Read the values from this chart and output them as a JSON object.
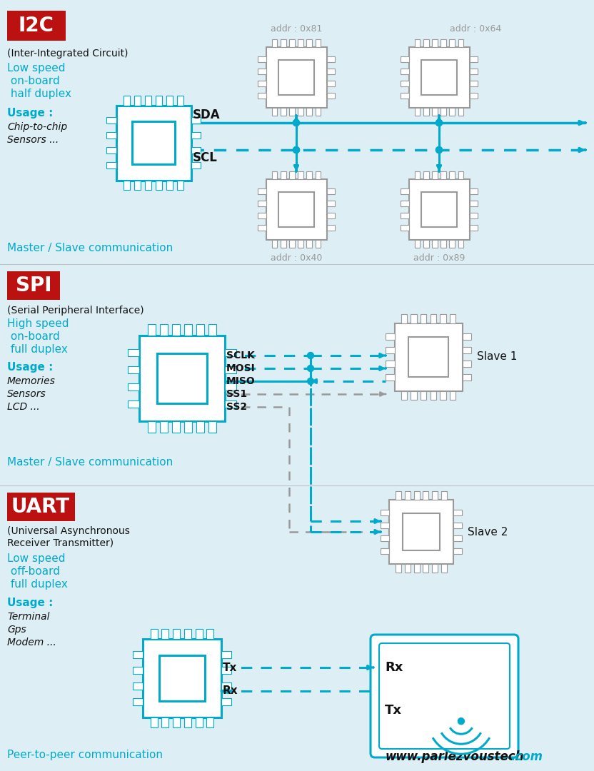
{
  "bg_color": "#deeef5",
  "cyan": "#00aacc",
  "red": "#bb1111",
  "gray": "#999999",
  "dark_gray": "#666666",
  "black": "#111111",
  "white": "#ffffff",
  "title_i2c": "I2C",
  "title_spi": "SPI",
  "title_uart": "UART",
  "i2c_subtitle": "(Inter-Integrated Circuit)",
  "i2c_desc": [
    "Low speed",
    " on-board",
    " half duplex"
  ],
  "i2c_usage_label": "Usage :",
  "i2c_usage": [
    "Chip-to-chip",
    "Sensors ..."
  ],
  "i2c_comm": "Master / Slave communication",
  "spi_subtitle": "(Serial Peripheral Interface)",
  "spi_desc": [
    "High speed",
    " on-board",
    " full duplex"
  ],
  "spi_usage_label": "Usage :",
  "spi_usage": [
    "Memories",
    "Sensors",
    "LCD ..."
  ],
  "spi_comm": "Master / Slave communication",
  "uart_subtitle1": "(Universal Asynchronous",
  "uart_subtitle2": "Receiver Transmitter)",
  "uart_desc": [
    "Low speed",
    " off-board",
    " full duplex"
  ],
  "uart_usage_label": "Usage :",
  "uart_usage": [
    "Terminal",
    "Gps",
    "Modem ..."
  ],
  "uart_comm": "Peer-to-peer communication",
  "footer_plain": "www.parlezvoustech",
  "footer_bold": ".com",
  "i2c_addrs": [
    "addr : 0x81",
    "addr : 0x64",
    "addr : 0x40",
    "addr : 0x89"
  ],
  "spi_signals": [
    "SCLK",
    "MOSI",
    "MISO",
    "SS1",
    "SS2"
  ],
  "slave_labels": [
    "Slave 1",
    "Slave 2"
  ],
  "sda_label": "SDA",
  "scl_label": "SCL",
  "tx_label": "Tx",
  "rx_label": "Rx"
}
